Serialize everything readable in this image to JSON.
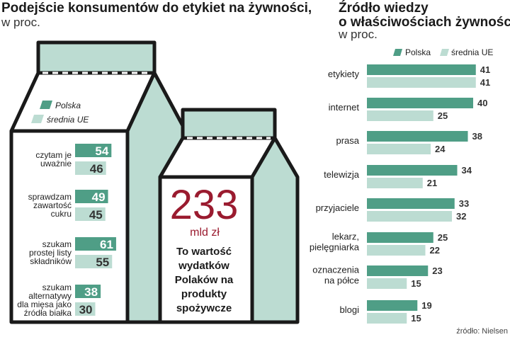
{
  "left_panel": {
    "title": "Podejście konsumentów do etykiet na żywności,",
    "subtitle": "w proc.",
    "legend": [
      {
        "label": "Polska",
        "color": "#4f9e86"
      },
      {
        "label": "średnia UE",
        "color": "#bcdcd2"
      }
    ],
    "big_number": "233",
    "big_unit": "mld zł",
    "callout_lines": [
      "To wartość",
      "wydatków",
      "Polaków na",
      "produkty",
      "spożywcze"
    ]
  },
  "right_panel": {
    "title_lines": [
      "Źródło wiedzy",
      "o właściwościach żywności,"
    ],
    "subtitle": "w proc.",
    "legend": [
      {
        "label": "Polska",
        "color": "#4f9e86"
      },
      {
        "label": "średnia UE",
        "color": "#bcdcd2"
      }
    ]
  },
  "source": "źródło: Nielsen",
  "colors": {
    "polska": "#4f9e86",
    "ue": "#bcdcd2",
    "carton_fill": "#bcdcd2",
    "carton_front": "#ffffff",
    "outline": "#1a1a1a",
    "highlight": "#9a1b2f"
  },
  "chart_data": [
    {
      "type": "bar",
      "orientation": "horizontal",
      "title": "Podejście konsumentów do etykiet na żywności,",
      "subtitle": "w proc.",
      "categories": [
        [
          "czytam je",
          "uważnie"
        ],
        [
          "sprawdzam",
          "zawartość",
          "cukru"
        ],
        [
          "szukam",
          "prostej listy",
          "składników"
        ],
        [
          "szukam",
          "alternatywy",
          "dla mięsa jako",
          "źródła białka"
        ]
      ],
      "series": [
        {
          "name": "Polska",
          "values": [
            54,
            49,
            61,
            38
          ]
        },
        {
          "name": "średnia UE",
          "values": [
            46,
            45,
            55,
            30
          ]
        }
      ]
    },
    {
      "type": "bar",
      "orientation": "horizontal",
      "title": "Źródło wiedzy o właściwościach żywności,",
      "subtitle": "w proc.",
      "categories": [
        [
          "etykiety"
        ],
        [
          "internet"
        ],
        [
          "prasa"
        ],
        [
          "telewizja"
        ],
        [
          "przyjaciele"
        ],
        [
          "lekarz,",
          "pielęgniarka"
        ],
        [
          "oznaczenia",
          "na półce"
        ],
        [
          "blogi"
        ]
      ],
      "series": [
        {
          "name": "Polska",
          "values": [
            41,
            40,
            38,
            34,
            33,
            25,
            23,
            19
          ]
        },
        {
          "name": "średnia UE",
          "values": [
            41,
            25,
            24,
            21,
            32,
            22,
            15,
            15
          ]
        }
      ],
      "legend": "top",
      "grid": false
    }
  ]
}
